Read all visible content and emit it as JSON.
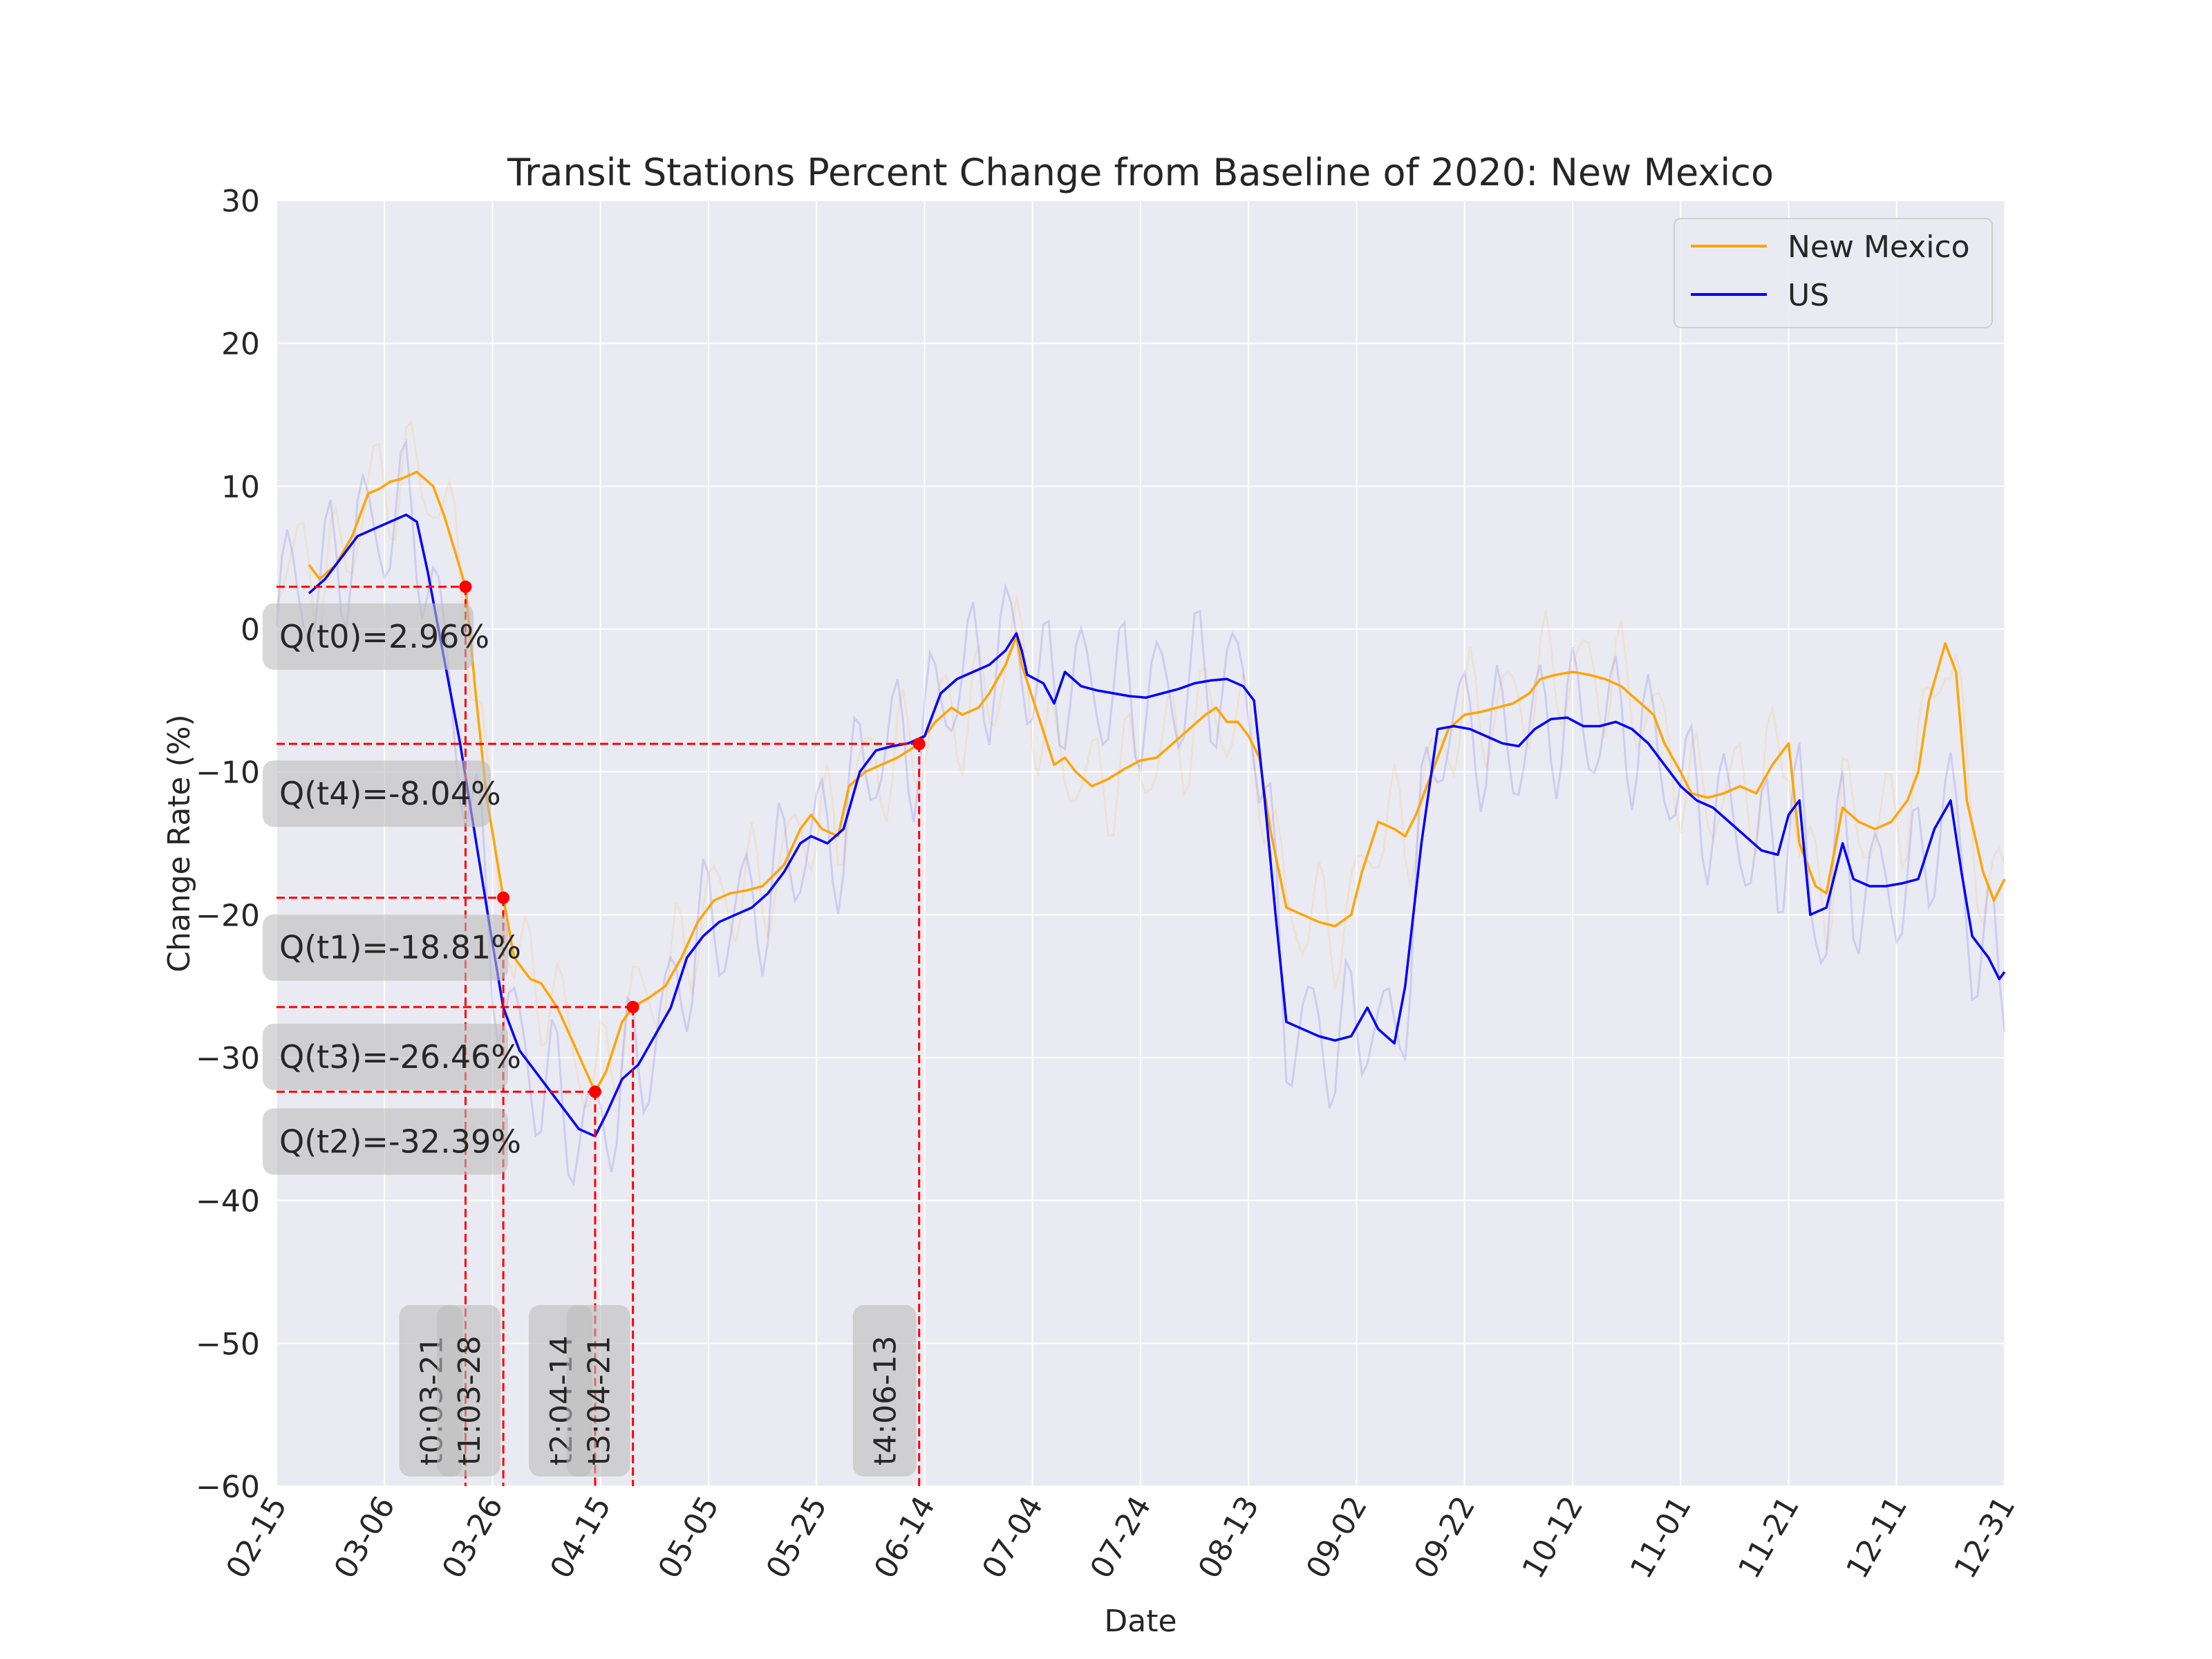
{
  "chart_data": {
    "type": "line",
    "title": "Transit Stations Percent Change from Baseline of 2020: New Mexico",
    "xlabel": "Date",
    "ylabel": "Change Rate (%)",
    "xlim": [
      "02-15",
      "12-31"
    ],
    "ylim": [
      -60,
      30
    ],
    "grid": true,
    "legend_position": "upper right",
    "x_ticks": [
      "02-15",
      "03-06",
      "03-26",
      "04-15",
      "05-05",
      "05-25",
      "06-14",
      "07-04",
      "07-24",
      "08-13",
      "09-02",
      "09-22",
      "10-12",
      "11-01",
      "11-21",
      "12-11",
      "12-31"
    ],
    "y_ticks": [
      30,
      20,
      10,
      0,
      -10,
      -20,
      -30,
      -40,
      -50,
      -60
    ],
    "y_tick_labels": [
      "30",
      "20",
      "10",
      "0",
      "−10",
      "−20",
      "−30",
      "−40",
      "−50",
      "−60"
    ],
    "series": [
      {
        "name": "New Mexico",
        "color": "#ffa500",
        "style": "7-day moving average, faint raw daily line behind",
        "points": [
          [
            "02-21",
            4.5
          ],
          [
            "02-23",
            3.5
          ],
          [
            "02-26",
            4.5
          ],
          [
            "02-29",
            6.5
          ],
          [
            "03-03",
            9.5
          ],
          [
            "03-05",
            9.8
          ],
          [
            "03-07",
            10.3
          ],
          [
            "03-09",
            10.5
          ],
          [
            "03-12",
            11.0
          ],
          [
            "03-15",
            10.0
          ],
          [
            "03-17",
            8.0
          ],
          [
            "03-19",
            5.5
          ],
          [
            "03-21",
            2.96
          ],
          [
            "03-23",
            -5.0
          ],
          [
            "03-25",
            -12.0
          ],
          [
            "03-28",
            -18.81
          ],
          [
            "03-30",
            -23.0
          ],
          [
            "04-02",
            -24.5
          ],
          [
            "04-04",
            -24.8
          ],
          [
            "04-07",
            -26.5
          ],
          [
            "04-10",
            -29.0
          ],
          [
            "04-14",
            -32.39
          ],
          [
            "04-16",
            -31.0
          ],
          [
            "04-19",
            -27.5
          ],
          [
            "04-21",
            -26.46
          ],
          [
            "04-24",
            -25.8
          ],
          [
            "04-27",
            -25.0
          ],
          [
            "04-30",
            -23.0
          ],
          [
            "05-03",
            -20.5
          ],
          [
            "05-06",
            -19.0
          ],
          [
            "05-09",
            -18.5
          ],
          [
            "05-12",
            -18.3
          ],
          [
            "05-15",
            -18.0
          ],
          [
            "05-19",
            -16.5
          ],
          [
            "05-22",
            -14.0
          ],
          [
            "05-24",
            -13.0
          ],
          [
            "05-26",
            -14.0
          ],
          [
            "05-29",
            -14.5
          ],
          [
            "05-31",
            -11.0
          ],
          [
            "06-03",
            -10.0
          ],
          [
            "06-06",
            -9.5
          ],
          [
            "06-09",
            -9.0
          ],
          [
            "06-13",
            -8.04
          ],
          [
            "06-16",
            -6.5
          ],
          [
            "06-19",
            -5.5
          ],
          [
            "06-21",
            -6.0
          ],
          [
            "06-24",
            -5.5
          ],
          [
            "06-26",
            -4.5
          ],
          [
            "06-29",
            -2.5
          ],
          [
            "07-01",
            -0.5
          ],
          [
            "07-02",
            -2.5
          ],
          [
            "07-05",
            -6.0
          ],
          [
            "07-08",
            -9.5
          ],
          [
            "07-10",
            -9.0
          ],
          [
            "07-12",
            -10.0
          ],
          [
            "07-15",
            -11.0
          ],
          [
            "07-18",
            -10.5
          ],
          [
            "07-21",
            -9.8
          ],
          [
            "07-24",
            -9.2
          ],
          [
            "07-27",
            -9.0
          ],
          [
            "07-30",
            -8.0
          ],
          [
            "08-02",
            -7.0
          ],
          [
            "08-05",
            -6.0
          ],
          [
            "08-07",
            -5.5
          ],
          [
            "08-09",
            -6.5
          ],
          [
            "08-11",
            -6.5
          ],
          [
            "08-13",
            -7.5
          ],
          [
            "08-15",
            -9.0
          ],
          [
            "08-17",
            -14.0
          ],
          [
            "08-20",
            -19.5
          ],
          [
            "08-23",
            -20.0
          ],
          [
            "08-26",
            -20.5
          ],
          [
            "08-29",
            -20.8
          ],
          [
            "09-01",
            -20.0
          ],
          [
            "09-03",
            -17.0
          ],
          [
            "09-06",
            -13.5
          ],
          [
            "09-09",
            -14.0
          ],
          [
            "09-11",
            -14.5
          ],
          [
            "09-13",
            -13.0
          ],
          [
            "09-16",
            -10.0
          ],
          [
            "09-19",
            -7.0
          ],
          [
            "09-22",
            -6.0
          ],
          [
            "09-25",
            -5.8
          ],
          [
            "09-28",
            -5.5
          ],
          [
            "10-01",
            -5.2
          ],
          [
            "10-04",
            -4.5
          ],
          [
            "10-06",
            -3.5
          ],
          [
            "10-09",
            -3.2
          ],
          [
            "10-12",
            -3.0
          ],
          [
            "10-15",
            -3.2
          ],
          [
            "10-18",
            -3.5
          ],
          [
            "10-21",
            -4.0
          ],
          [
            "10-24",
            -5.0
          ],
          [
            "10-27",
            -6.0
          ],
          [
            "10-29",
            -8.0
          ],
          [
            "11-01",
            -10.0
          ],
          [
            "11-03",
            -11.5
          ],
          [
            "11-06",
            -11.8
          ],
          [
            "11-09",
            -11.5
          ],
          [
            "11-12",
            -11.0
          ],
          [
            "11-15",
            -11.5
          ],
          [
            "11-18",
            -9.5
          ],
          [
            "11-21",
            -8.0
          ],
          [
            "11-23",
            -15.0
          ],
          [
            "11-26",
            -18.0
          ],
          [
            "11-28",
            -18.5
          ],
          [
            "12-01",
            -12.5
          ],
          [
            "12-04",
            -13.5
          ],
          [
            "12-07",
            -14.0
          ],
          [
            "12-10",
            -13.5
          ],
          [
            "12-13",
            -12.0
          ],
          [
            "12-15",
            -10.0
          ],
          [
            "12-17",
            -5.0
          ],
          [
            "12-20",
            -1.0
          ],
          [
            "12-22",
            -3.0
          ],
          [
            "12-24",
            -12.0
          ],
          [
            "12-27",
            -17.0
          ],
          [
            "12-29",
            -19.0
          ],
          [
            "12-31",
            -17.5
          ]
        ]
      },
      {
        "name": "US",
        "color": "#0000ff",
        "style": "7-day moving average, faint raw daily line behind",
        "points": [
          [
            "02-21",
            2.5
          ],
          [
            "02-24",
            3.5
          ],
          [
            "02-27",
            5.0
          ],
          [
            "03-01",
            6.5
          ],
          [
            "03-04",
            7.0
          ],
          [
            "03-07",
            7.5
          ],
          [
            "03-10",
            8.0
          ],
          [
            "03-12",
            7.5
          ],
          [
            "03-14",
            4.0
          ],
          [
            "03-17",
            -2.0
          ],
          [
            "03-20",
            -8.0
          ],
          [
            "03-23",
            -15.0
          ],
          [
            "03-26",
            -22.0
          ],
          [
            "03-28",
            -26.5
          ],
          [
            "03-31",
            -29.5
          ],
          [
            "04-03",
            -31.0
          ],
          [
            "04-06",
            -32.5
          ],
          [
            "04-09",
            -34.0
          ],
          [
            "04-11",
            -35.0
          ],
          [
            "04-14",
            -35.5
          ],
          [
            "04-16",
            -34.0
          ],
          [
            "04-19",
            -31.5
          ],
          [
            "04-22",
            -30.5
          ],
          [
            "04-25",
            -28.5
          ],
          [
            "04-28",
            -26.5
          ],
          [
            "05-01",
            -23.0
          ],
          [
            "05-04",
            -21.5
          ],
          [
            "05-07",
            -20.5
          ],
          [
            "05-10",
            -20.0
          ],
          [
            "05-13",
            -19.5
          ],
          [
            "05-16",
            -18.5
          ],
          [
            "05-19",
            -17.0
          ],
          [
            "05-22",
            -15.0
          ],
          [
            "05-24",
            -14.5
          ],
          [
            "05-27",
            -15.0
          ],
          [
            "05-30",
            -14.0
          ],
          [
            "06-02",
            -10.0
          ],
          [
            "06-05",
            -8.5
          ],
          [
            "06-08",
            -8.2
          ],
          [
            "06-11",
            -8.0
          ],
          [
            "06-14",
            -7.5
          ],
          [
            "06-17",
            -4.5
          ],
          [
            "06-20",
            -3.5
          ],
          [
            "06-23",
            -3.0
          ],
          [
            "06-26",
            -2.5
          ],
          [
            "06-29",
            -1.5
          ],
          [
            "07-01",
            -0.3
          ],
          [
            "07-02",
            -1.5
          ],
          [
            "07-03",
            -3.2
          ],
          [
            "07-06",
            -3.8
          ],
          [
            "07-08",
            -5.2
          ],
          [
            "07-10",
            -3.0
          ],
          [
            "07-13",
            -4.0
          ],
          [
            "07-16",
            -4.3
          ],
          [
            "07-19",
            -4.5
          ],
          [
            "07-22",
            -4.7
          ],
          [
            "07-25",
            -4.8
          ],
          [
            "07-28",
            -4.5
          ],
          [
            "07-31",
            -4.2
          ],
          [
            "08-03",
            -3.8
          ],
          [
            "08-06",
            -3.6
          ],
          [
            "08-09",
            -3.5
          ],
          [
            "08-12",
            -4.0
          ],
          [
            "08-14",
            -5.0
          ],
          [
            "08-16",
            -12.0
          ],
          [
            "08-18",
            -20.0
          ],
          [
            "08-20",
            -27.5
          ],
          [
            "08-23",
            -28.0
          ],
          [
            "08-26",
            -28.5
          ],
          [
            "08-29",
            -28.8
          ],
          [
            "09-01",
            -28.5
          ],
          [
            "09-04",
            -26.5
          ],
          [
            "09-06",
            -28.0
          ],
          [
            "09-09",
            -29.0
          ],
          [
            "09-11",
            -25.0
          ],
          [
            "09-14",
            -15.0
          ],
          [
            "09-17",
            -7.0
          ],
          [
            "09-20",
            -6.8
          ],
          [
            "09-23",
            -7.0
          ],
          [
            "09-26",
            -7.5
          ],
          [
            "09-29",
            -8.0
          ],
          [
            "10-02",
            -8.2
          ],
          [
            "10-05",
            -7.0
          ],
          [
            "10-08",
            -6.3
          ],
          [
            "10-11",
            -6.2
          ],
          [
            "10-14",
            -6.8
          ],
          [
            "10-17",
            -6.8
          ],
          [
            "10-20",
            -6.5
          ],
          [
            "10-23",
            -7.0
          ],
          [
            "10-26",
            -8.0
          ],
          [
            "10-29",
            -9.5
          ],
          [
            "11-01",
            -11.0
          ],
          [
            "11-04",
            -12.0
          ],
          [
            "11-07",
            -12.5
          ],
          [
            "11-10",
            -13.5
          ],
          [
            "11-13",
            -14.5
          ],
          [
            "11-16",
            -15.5
          ],
          [
            "11-19",
            -15.8
          ],
          [
            "11-21",
            -13.0
          ],
          [
            "11-23",
            -12.0
          ],
          [
            "11-25",
            -20.0
          ],
          [
            "11-28",
            -19.5
          ],
          [
            "12-01",
            -15.0
          ],
          [
            "12-03",
            -17.5
          ],
          [
            "12-06",
            -18.0
          ],
          [
            "12-09",
            -18.0
          ],
          [
            "12-12",
            -17.8
          ],
          [
            "12-15",
            -17.5
          ],
          [
            "12-18",
            -14.0
          ],
          [
            "12-21",
            -12.0
          ],
          [
            "12-23",
            -17.0
          ],
          [
            "12-25",
            -21.5
          ],
          [
            "12-28",
            -23.0
          ],
          [
            "12-30",
            -24.5
          ],
          [
            "12-31",
            -24.0
          ]
        ]
      }
    ],
    "annotations": [
      {
        "point": "t0",
        "date": "03-21",
        "value": 2.96,
        "value_label": "Q(t0)=2.96%",
        "date_label": "t0:03-21"
      },
      {
        "point": "t1",
        "date": "03-28",
        "value": -18.81,
        "value_label": "Q(t1)=-18.81%",
        "date_label": "t1:03-28"
      },
      {
        "point": "t2",
        "date": "04-14",
        "value": -32.39,
        "value_label": "Q(t2)=-32.39%",
        "date_label": "t2:04-14"
      },
      {
        "point": "t3",
        "date": "04-21",
        "value": -26.46,
        "value_label": "Q(t3)=-26.46%",
        "date_label": "t3:04-21"
      },
      {
        "point": "t4",
        "date": "06-13",
        "value": -8.04,
        "value_label": "Q(t4)=-8.04%",
        "date_label": "t4:06-13"
      }
    ]
  }
}
